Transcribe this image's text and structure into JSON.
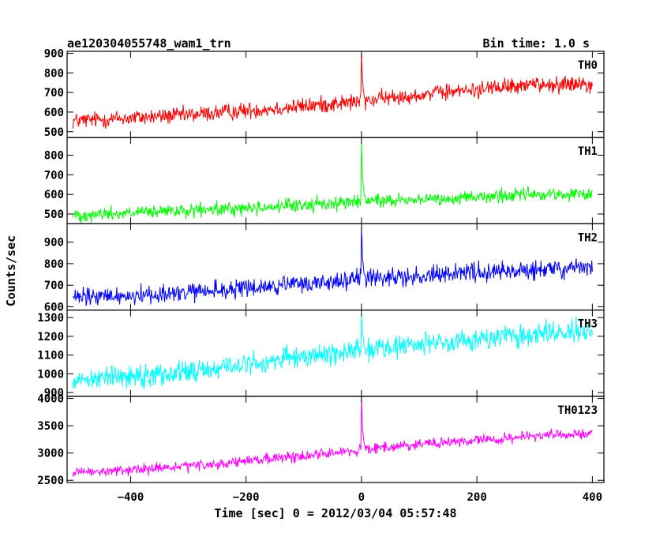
{
  "header": {
    "title": "ae120304055748_wam1_trn",
    "bin_time": "Bin time: 1.0 s"
  },
  "chart_data": {
    "type": "line",
    "xlabel": "Time [sec] 0 = 2012/03/04 05:57:48",
    "ylabel": "Counts/sec",
    "xlim": [
      -510,
      420
    ],
    "xticks": [
      -400,
      -200,
      0,
      200,
      400
    ],
    "x_start": -500,
    "x_end": 400,
    "grid": false,
    "panels": [
      {
        "label": "TH0",
        "color": "#ff0000",
        "ylim": [
          470,
          910
        ],
        "yticks": [
          500,
          600,
          700,
          800,
          900
        ],
        "trend": {
          "x": [
            -500,
            -300,
            -100,
            0,
            100,
            300,
            400
          ],
          "y": [
            555,
            585,
            630,
            655,
            690,
            740,
            750
          ]
        },
        "noise_amplitude": 34,
        "spike": {
          "x": 0,
          "y": 905
        }
      },
      {
        "label": "TH1",
        "color": "#00ff00",
        "ylim": [
          450,
          890
        ],
        "yticks": [
          500,
          600,
          700,
          800
        ],
        "trend": {
          "x": [
            -500,
            -300,
            -100,
            0,
            100,
            300,
            400
          ],
          "y": [
            495,
            515,
            545,
            565,
            575,
            600,
            600
          ]
        },
        "noise_amplitude": 28,
        "spike": {
          "x": 0,
          "y": 880
        }
      },
      {
        "label": "TH2",
        "color": "#0000ff",
        "ylim": [
          585,
          985
        ],
        "yticks": [
          600,
          700,
          800,
          900
        ],
        "trend": {
          "x": [
            -500,
            -300,
            -100,
            0,
            100,
            300,
            400
          ],
          "y": [
            640,
            665,
            705,
            730,
            745,
            770,
            780
          ]
        },
        "noise_amplitude": 35,
        "spike": {
          "x": 0,
          "y": 975
        }
      },
      {
        "label": "TH3",
        "color": "#00ffff",
        "ylim": [
          880,
          1340
        ],
        "yticks": [
          900,
          1000,
          1100,
          1200,
          1300
        ],
        "trend": {
          "x": [
            -500,
            -300,
            -100,
            0,
            100,
            300,
            400
          ],
          "y": [
            970,
            1010,
            1090,
            1130,
            1160,
            1210,
            1230
          ]
        },
        "noise_amplitude": 48,
        "spike": {
          "x": 0,
          "y": 1335
        }
      },
      {
        "label": "TH0123",
        "color": "#ff00ff",
        "ylim": [
          2460,
          4040
        ],
        "yticks": [
          2500,
          3000,
          3500,
          4000
        ],
        "trend": {
          "x": [
            -500,
            -300,
            -100,
            0,
            100,
            300,
            400
          ],
          "y": [
            2630,
            2750,
            2950,
            3060,
            3150,
            3310,
            3360
          ]
        },
        "noise_amplitude": 75,
        "spike": {
          "x": 0,
          "y": 4010
        }
      }
    ]
  }
}
